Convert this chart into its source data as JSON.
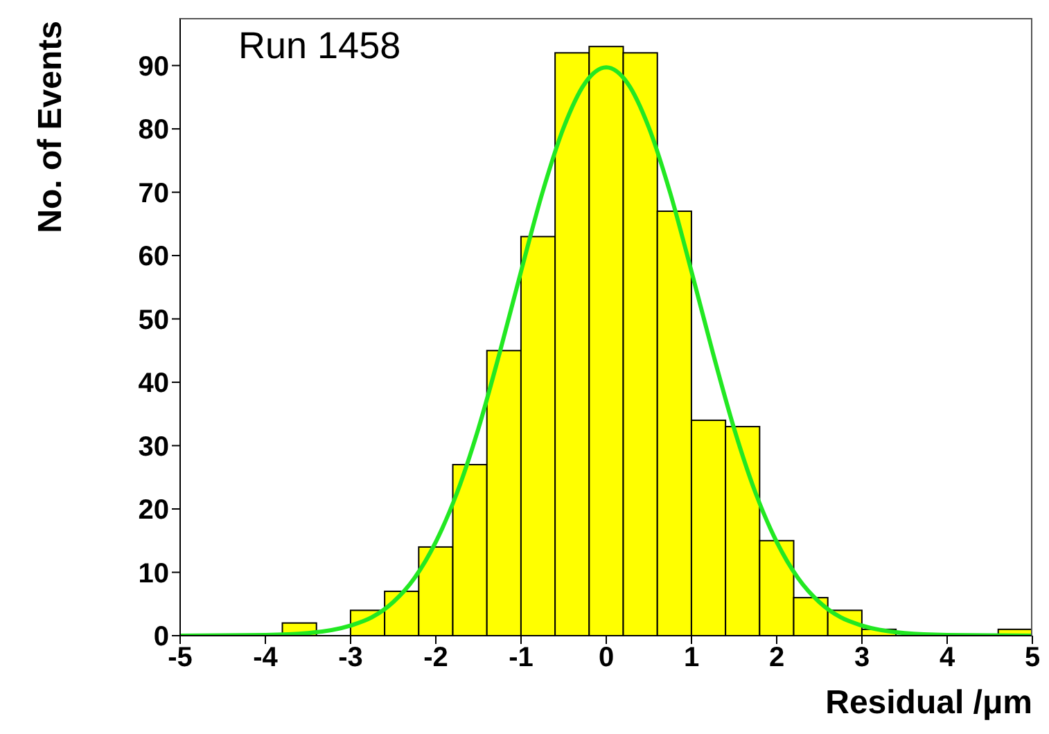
{
  "chart_data": {
    "type": "histogram",
    "xlabel": "Residual /μm",
    "ylabel": "No. of Events",
    "annotations": [
      "Run 1458"
    ],
    "bins": [
      -5,
      -4.6,
      -4.2,
      -3.8,
      -3.4,
      -3,
      -2.6,
      -2.2,
      -1.8,
      -1.4,
      -1,
      -0.6,
      -0.2,
      0.2,
      0.6,
      1,
      1.4,
      1.8,
      2.2,
      2.6,
      3,
      3.4,
      3.8,
      4.2,
      4.6,
      5
    ],
    "values": [
      0,
      0,
      0,
      2,
      0,
      4,
      7,
      14,
      27,
      45,
      63,
      92,
      93,
      92,
      67,
      34,
      33,
      15,
      6,
      4,
      1,
      0,
      0,
      0,
      1
    ],
    "color": "#ffff00",
    "xlim": [
      -5,
      5
    ],
    "ylim": [
      0,
      97.5
    ],
    "xticks": [
      -5,
      -4,
      -3,
      -2,
      -1,
      0,
      1,
      2,
      3,
      4,
      5
    ],
    "yticks": [
      0,
      10,
      20,
      30,
      40,
      50,
      60,
      70,
      80,
      90
    ],
    "series": [
      {
        "type": "line",
        "color": "#22e822",
        "x": [
          -5,
          -4,
          -3.5,
          -3,
          -2.75,
          -2.5,
          -2.25,
          -2,
          -1.75,
          -1.5,
          -1.25,
          -1,
          -0.75,
          -0.5,
          -0.25,
          0,
          0.25,
          0.5,
          0.75,
          1,
          1.25,
          1.5,
          1.75,
          2,
          2.25,
          2.5,
          2.75,
          3,
          3.5,
          4,
          5
        ],
        "values": [
          0,
          0.1,
          0.4,
          1.6,
          2.9,
          5.3,
          9.1,
          14.8,
          22.6,
          32.7,
          44.7,
          57.5,
          69.9,
          80.2,
          87.2,
          89.7,
          87.2,
          80.2,
          69.9,
          57.5,
          44.7,
          32.7,
          22.6,
          14.8,
          9.1,
          5.3,
          2.9,
          1.6,
          0.4,
          0.1,
          0
        ]
      }
    ]
  }
}
